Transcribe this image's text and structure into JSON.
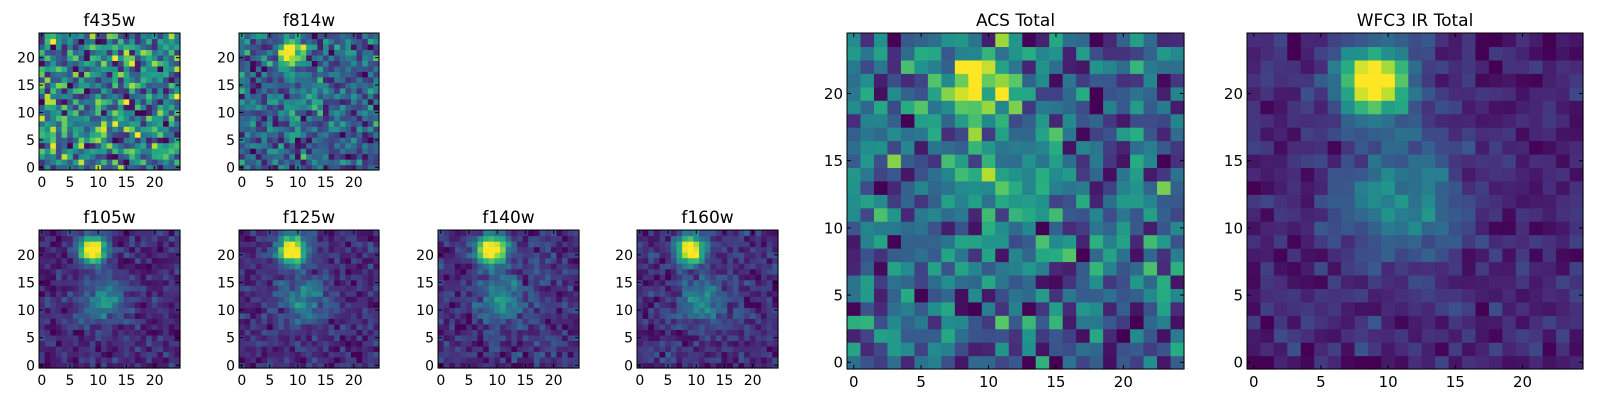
{
  "chart_data": [
    {
      "type": "heatmap",
      "title": "f435w",
      "xlabel": "",
      "ylabel": "",
      "xlim": [
        -0.5,
        24.5
      ],
      "ylim": [
        -0.5,
        24.5
      ],
      "xticks": [
        0,
        5,
        10,
        15,
        20
      ],
      "yticks": [
        0,
        5,
        10,
        15,
        20
      ],
      "colormap": "viridis",
      "grid": false,
      "sources": [],
      "noise": 1.0,
      "seed": 11
    },
    {
      "type": "heatmap",
      "title": "f814w",
      "xlabel": "",
      "ylabel": "",
      "xlim": [
        -0.5,
        24.5
      ],
      "ylim": [
        -0.5,
        24.5
      ],
      "xticks": [
        0,
        5,
        10,
        15,
        20
      ],
      "yticks": [
        0,
        5,
        10,
        15,
        20
      ],
      "colormap": "viridis",
      "grid": false,
      "sources": [
        {
          "x": 9,
          "y": 21,
          "amp": 0.85,
          "sigma": 1.6
        },
        {
          "x": 11,
          "y": 13,
          "amp": 0.15,
          "sigma": 2.5
        }
      ],
      "noise": 0.55,
      "seed": 23
    },
    {
      "type": "heatmap",
      "title": "f105w",
      "xlabel": "",
      "ylabel": "",
      "xlim": [
        -0.5,
        24.5
      ],
      "ylim": [
        -0.5,
        24.5
      ],
      "xticks": [
        0,
        5,
        10,
        15,
        20
      ],
      "yticks": [
        0,
        5,
        10,
        15,
        20
      ],
      "colormap": "viridis",
      "grid": false,
      "sources": [
        {
          "x": 9,
          "y": 21,
          "amp": 1.0,
          "sigma": 1.7
        },
        {
          "x": 11,
          "y": 12,
          "amp": 0.35,
          "sigma": 2.8
        }
      ],
      "noise": 0.22,
      "seed": 37
    },
    {
      "type": "heatmap",
      "title": "f125w",
      "xlabel": "",
      "ylabel": "",
      "xlim": [
        -0.5,
        24.5
      ],
      "ylim": [
        -0.5,
        24.5
      ],
      "xticks": [
        0,
        5,
        10,
        15,
        20
      ],
      "yticks": [
        0,
        5,
        10,
        15,
        20
      ],
      "colormap": "viridis",
      "grid": false,
      "sources": [
        {
          "x": 9,
          "y": 21,
          "amp": 1.0,
          "sigma": 1.7
        },
        {
          "x": 11,
          "y": 12,
          "amp": 0.33,
          "sigma": 2.8
        }
      ],
      "noise": 0.22,
      "seed": 41
    },
    {
      "type": "heatmap",
      "title": "f140w",
      "xlabel": "",
      "ylabel": "",
      "xlim": [
        -0.5,
        24.5
      ],
      "ylim": [
        -0.5,
        24.5
      ],
      "xticks": [
        0,
        5,
        10,
        15,
        20
      ],
      "yticks": [
        0,
        5,
        10,
        15,
        20
      ],
      "colormap": "viridis",
      "grid": false,
      "sources": [
        {
          "x": 9,
          "y": 21,
          "amp": 1.0,
          "sigma": 1.8
        },
        {
          "x": 11,
          "y": 12,
          "amp": 0.35,
          "sigma": 2.8
        }
      ],
      "noise": 0.24,
      "seed": 53
    },
    {
      "type": "heatmap",
      "title": "f160w",
      "xlabel": "",
      "ylabel": "",
      "xlim": [
        -0.5,
        24.5
      ],
      "ylim": [
        -0.5,
        24.5
      ],
      "xticks": [
        0,
        5,
        10,
        15,
        20
      ],
      "yticks": [
        0,
        5,
        10,
        15,
        20
      ],
      "colormap": "viridis",
      "grid": false,
      "sources": [
        {
          "x": 9,
          "y": 21,
          "amp": 1.0,
          "sigma": 1.8
        },
        {
          "x": 11,
          "y": 12,
          "amp": 0.37,
          "sigma": 2.8
        }
      ],
      "noise": 0.24,
      "seed": 67
    },
    {
      "type": "heatmap",
      "title": "ACS Total",
      "xlabel": "",
      "ylabel": "",
      "xlim": [
        -0.5,
        24.5
      ],
      "ylim": [
        -0.5,
        24.5
      ],
      "xticks": [
        0,
        5,
        10,
        15,
        20
      ],
      "yticks": [
        0,
        5,
        10,
        15,
        20
      ],
      "colormap": "viridis",
      "grid": false,
      "sources": [
        {
          "x": 9,
          "y": 21,
          "amp": 0.55,
          "sigma": 1.8
        },
        {
          "x": 11,
          "y": 13,
          "amp": 0.2,
          "sigma": 2.5
        }
      ],
      "noise": 0.5,
      "seed": 79
    },
    {
      "type": "heatmap",
      "title": "WFC3 IR Total",
      "xlabel": "",
      "ylabel": "",
      "xlim": [
        -0.5,
        24.5
      ],
      "ylim": [
        -0.5,
        24.5
      ],
      "xticks": [
        0,
        5,
        10,
        15,
        20
      ],
      "yticks": [
        0,
        5,
        10,
        15,
        20
      ],
      "colormap": "viridis",
      "grid": false,
      "sources": [
        {
          "x": 9,
          "y": 21,
          "amp": 1.0,
          "sigma": 1.9
        },
        {
          "x": 11,
          "y": 12,
          "amp": 0.4,
          "sigma": 3.0
        }
      ],
      "noise": 0.2,
      "seed": 97
    }
  ]
}
